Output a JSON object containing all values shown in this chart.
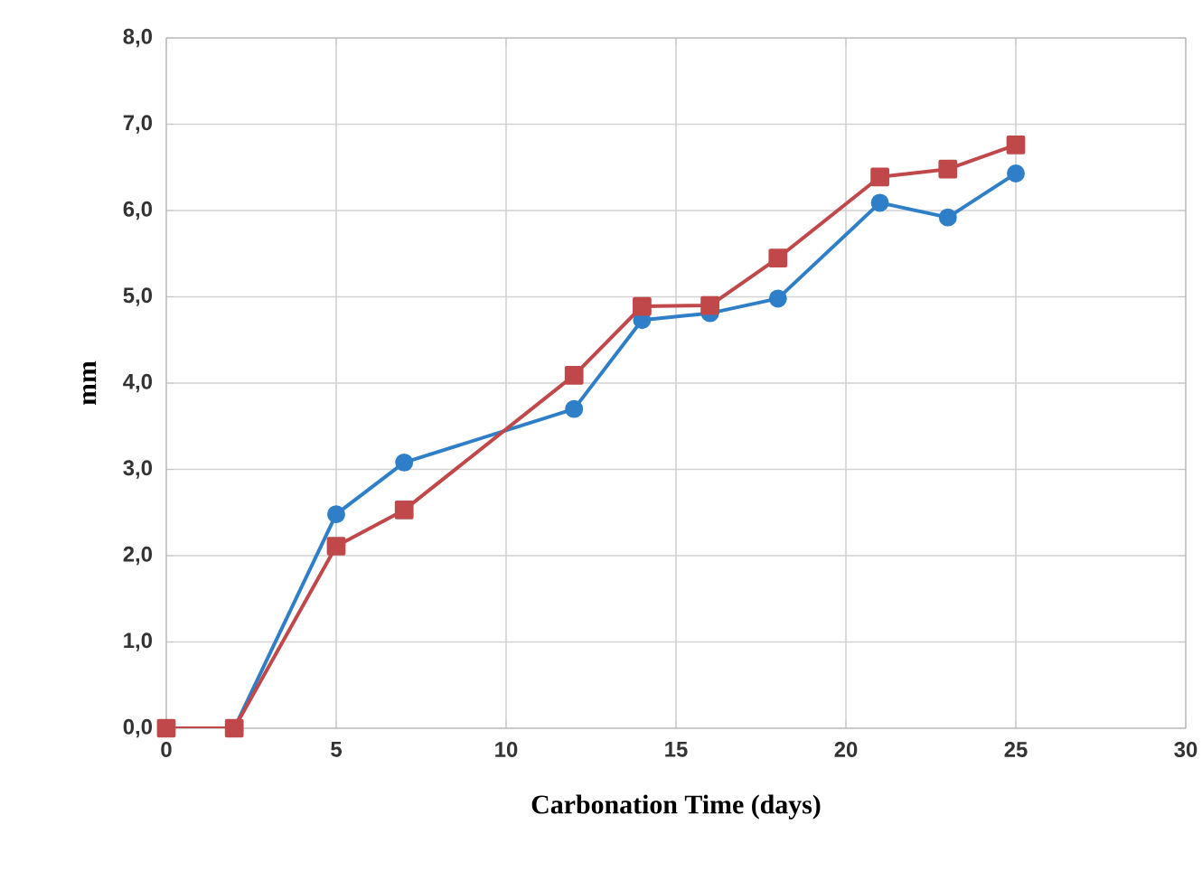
{
  "chart_data": {
    "type": "line",
    "xlabel": "Carbonation Time (days)",
    "ylabel": "mm",
    "xlim": [
      0,
      30
    ],
    "xticks": [
      0,
      5,
      10,
      15,
      20,
      25,
      30
    ],
    "ylim": [
      0,
      8
    ],
    "yticks": [
      {
        "value": 0,
        "label": "0,0"
      },
      {
        "value": 1,
        "label": "1,0"
      },
      {
        "value": 2,
        "label": "2,0"
      },
      {
        "value": 3,
        "label": "3,0"
      },
      {
        "value": 4,
        "label": "4,0"
      },
      {
        "value": 5,
        "label": "5,0"
      },
      {
        "value": 6,
        "label": "6,0"
      },
      {
        "value": 7,
        "label": "7,0"
      },
      {
        "value": 8,
        "label": "8,0"
      }
    ],
    "grid": true,
    "series": [
      {
        "color": "#2e7fc8",
        "marker": "circle",
        "x": [
          0,
          2,
          5,
          7,
          12,
          14,
          16,
          18,
          21,
          23,
          25
        ],
        "values": [
          0,
          0,
          2.48,
          3.08,
          3.7,
          4.73,
          4.81,
          4.98,
          6.09,
          5.92,
          6.43
        ]
      },
      {
        "color": "#c0474a",
        "marker": "square",
        "x": [
          0,
          2,
          5,
          7,
          12,
          14,
          16,
          18,
          21,
          23,
          25
        ],
        "values": [
          0,
          0,
          2.11,
          2.53,
          4.09,
          4.89,
          4.9,
          5.45,
          6.39,
          6.48,
          6.76
        ]
      }
    ]
  }
}
